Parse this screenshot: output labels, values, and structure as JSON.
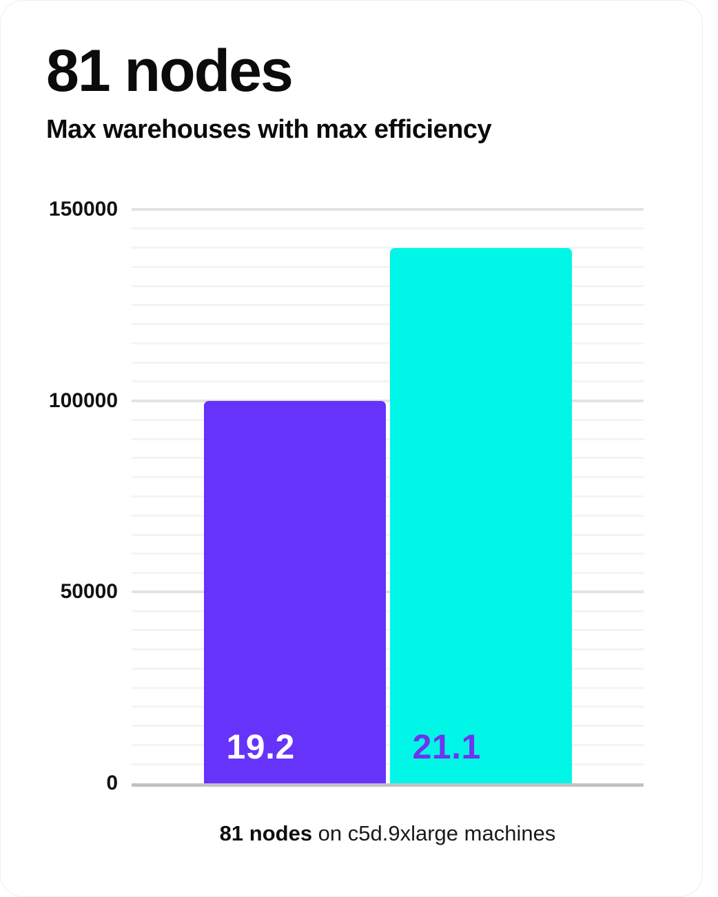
{
  "card": {
    "title": "81 nodes",
    "subtitle": "Max warehouses with max efficiency",
    "caption": {
      "bold": "81 nodes",
      "rest": " on c5d.9xlarge machines"
    }
  },
  "chart_data": {
    "type": "bar",
    "title": "81 nodes",
    "subtitle": "Max warehouses with max efficiency",
    "categories": [
      "19.2",
      "21.1"
    ],
    "values": [
      100000,
      140000
    ],
    "series": [
      {
        "name": "19.2",
        "value": 100000,
        "bar_color": "#6633fa",
        "label": "19.2",
        "label_color": "#ffffff"
      },
      {
        "name": "21.1",
        "value": 140000,
        "bar_color": "#00f6e6",
        "label": "21.1",
        "label_color": "#7033ef"
      }
    ],
    "xlabel": "",
    "ylabel": "",
    "ylim": [
      0,
      150000
    ],
    "yticks": [
      0,
      50000,
      100000,
      150000
    ],
    "minor_grid_step": 5000,
    "grid": true,
    "legend": false,
    "bar_labels_position": "inside-bottom-left",
    "caption": "81 nodes on c5d.9xlarge machines",
    "colors": {
      "purple": "#6633fa",
      "cyan": "#00f6e6",
      "label_on_cyan": "#7033ef",
      "grid_minor": "#f4f4f4",
      "grid_major": "#e3e3e3",
      "axis": "#c2c2c2",
      "text": "#0b0b0b"
    }
  }
}
